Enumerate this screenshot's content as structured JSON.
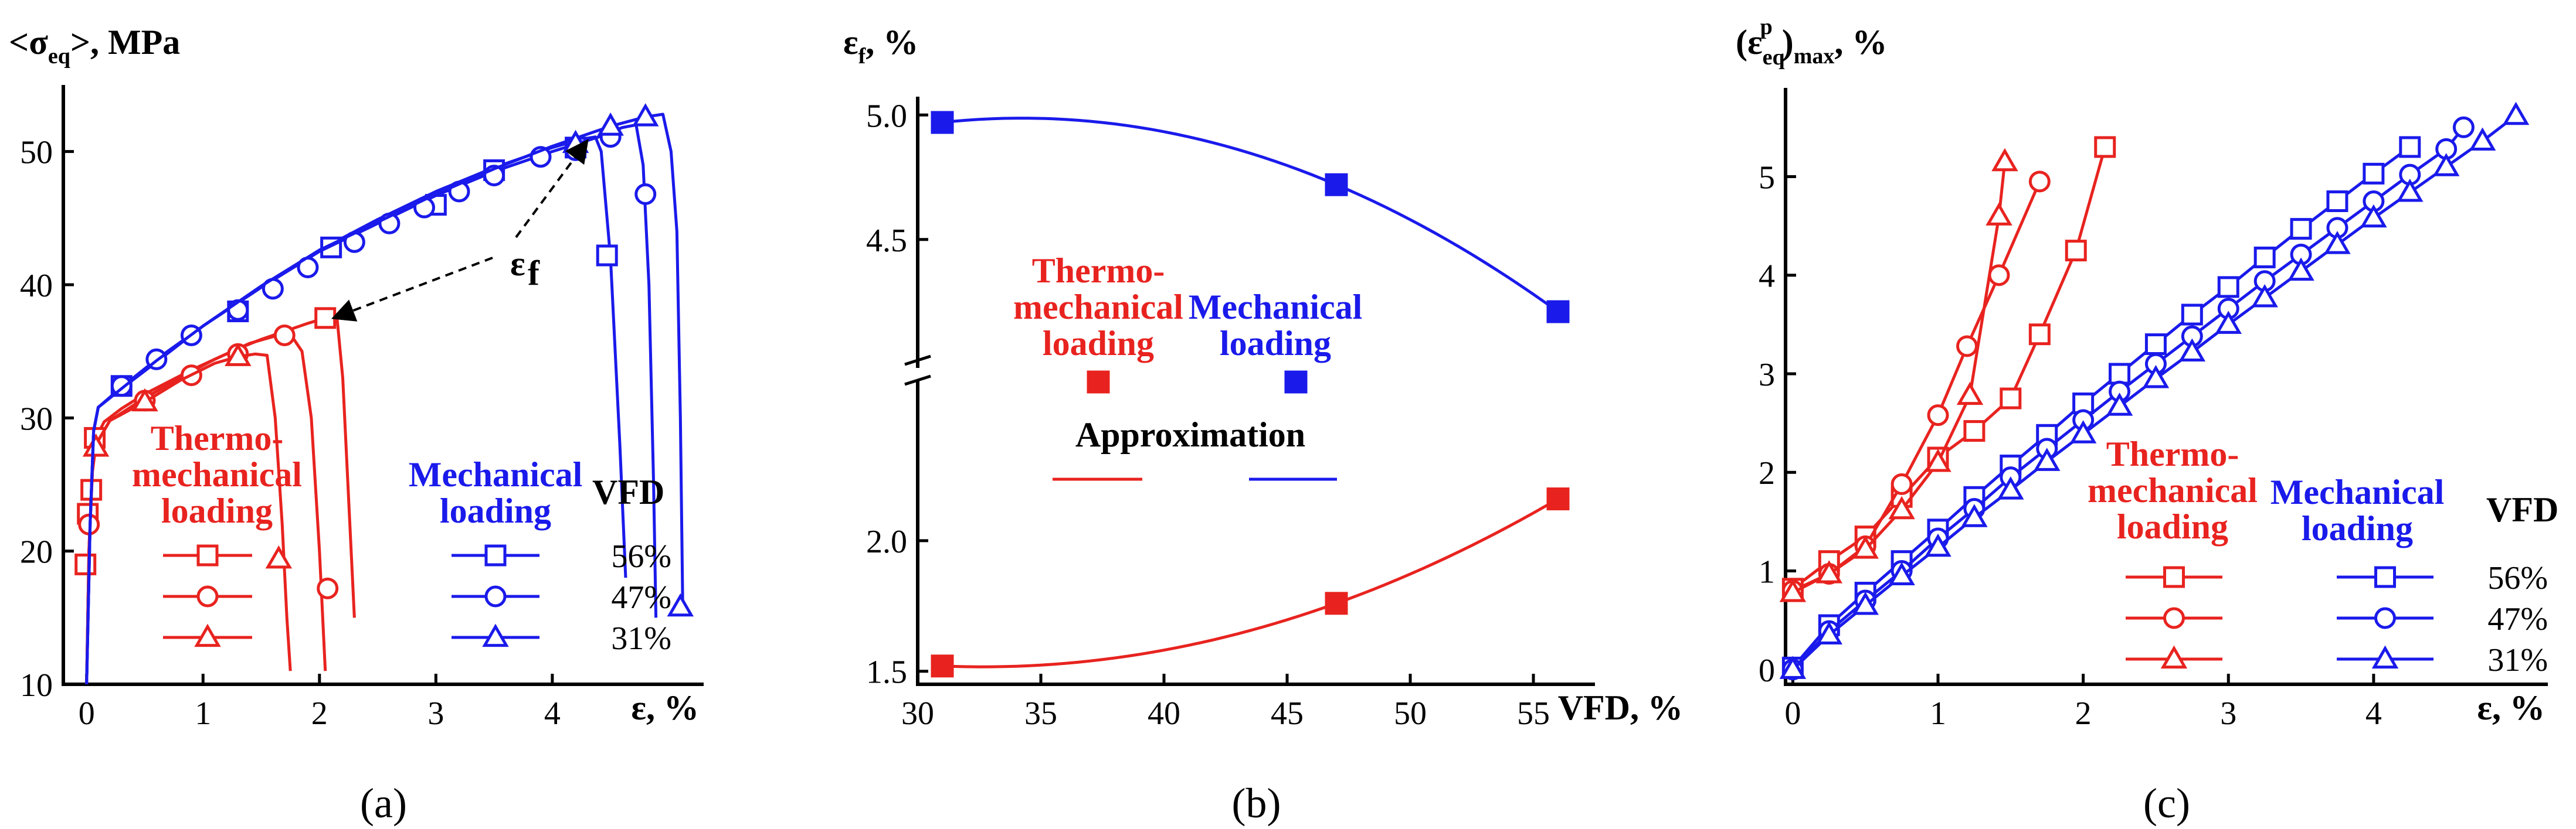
{
  "colors": {
    "thermo": "#e8231f",
    "mech": "#1a1aeb",
    "black": "#000000"
  },
  "chart_data": [
    {
      "id": "a",
      "type": "line",
      "caption": "(a)",
      "ylabel_parts": [
        "<σ",
        "eq",
        ">, MPa"
      ],
      "xlabel": "ε, %",
      "xlim": [
        -0.2,
        5.3
      ],
      "ylim": [
        10,
        55
      ],
      "xticks": [
        0,
        1,
        2,
        3,
        4
      ],
      "yticks": [
        10,
        20,
        30,
        40,
        50
      ],
      "annotation": {
        "symbol": "ε",
        "sub": "f"
      },
      "legend": {
        "thermo_title": [
          "Thermo-",
          "mechanical",
          "loading"
        ],
        "mech_title": [
          "Mechanical",
          "loading"
        ],
        "vfd_title": "VFD",
        "entries": [
          {
            "vfd": "56%",
            "marker": "square"
          },
          {
            "vfd": "47%",
            "marker": "circle"
          },
          {
            "vfd": "31%",
            "marker": "triangle"
          }
        ]
      },
      "series": [
        {
          "name": "Thermo-mechanical 56%",
          "group": "thermo",
          "marker": "square",
          "x": [
            0,
            0.02,
            0.04,
            0.06,
            0.08,
            0.15,
            0.3,
            0.5,
            0.7,
            0.9,
            1.1,
            1.3,
            1.5,
            1.7,
            1.9,
            2.05,
            2.15,
            2.2,
            2.25,
            2.3
          ],
          "y": [
            10,
            20,
            25,
            27.5,
            28.5,
            29.7,
            30.7,
            31.8,
            32.7,
            33.6,
            34.4,
            35.2,
            35.9,
            36.5,
            37.1,
            37.5,
            37.6,
            33,
            24,
            15
          ],
          "mx": [
            -0.01,
            0.01,
            0.04,
            0.07,
            2.05
          ],
          "my": [
            19,
            22.8,
            24.6,
            28.5,
            37.5
          ]
        },
        {
          "name": "Thermo-mechanical 47%",
          "group": "thermo",
          "marker": "circle",
          "x": [
            0,
            0.02,
            0.05,
            0.08,
            0.2,
            0.5,
            0.8,
            1.1,
            1.4,
            1.6,
            1.75,
            1.85,
            1.93,
            2.0,
            2.05
          ],
          "y": [
            10,
            20,
            26,
            28,
            29.8,
            31.5,
            33,
            34.4,
            35.6,
            36.1,
            36.3,
            35,
            30,
            20,
            11
          ],
          "mx": [
            0.02,
            0.5,
            0.9,
            1.3,
            1.7,
            2.07
          ],
          "my": [
            22,
            31.3,
            33.2,
            34.8,
            36.2,
            17.2
          ]
        },
        {
          "name": "Thermo-mechanical 31%",
          "group": "thermo",
          "marker": "triangle",
          "x": [
            0,
            0.02,
            0.05,
            0.08,
            0.2,
            0.5,
            0.8,
            1.1,
            1.3,
            1.45,
            1.55,
            1.62,
            1.68,
            1.72,
            1.75
          ],
          "y": [
            10,
            20,
            26,
            28,
            29.8,
            31.2,
            32.8,
            34.1,
            34.6,
            34.8,
            34.7,
            30,
            22,
            15,
            11
          ],
          "mx": [
            0.08,
            0.5,
            1.3,
            1.65
          ],
          "my": [
            27.8,
            31.2,
            34.6,
            19.4
          ]
        },
        {
          "name": "Mechanical 56%",
          "group": "mech",
          "marker": "square",
          "x": [
            0,
            0.03,
            0.06,
            0.1,
            0.3,
            0.6,
            1.0,
            1.5,
            2.0,
            2.5,
            3.0,
            3.5,
            4.0,
            4.2,
            4.3,
            4.37,
            4.42,
            4.5,
            4.58,
            4.63
          ],
          "y": [
            10,
            22,
            29,
            30.8,
            32.2,
            34.2,
            36.9,
            39.9,
            42.6,
            44.9,
            47.0,
            48.8,
            50.3,
            50.8,
            51.0,
            51.1,
            50,
            42,
            28,
            18
          ],
          "mx": [
            0.3,
            1.3,
            2.1,
            3.0,
            3.5,
            4.2,
            4.47
          ],
          "my": [
            32.4,
            38.0,
            42.8,
            46.0,
            48.6,
            50.3,
            42.2
          ]
        },
        {
          "name": "Mechanical 47%",
          "group": "mech",
          "marker": "circle",
          "x": [
            0,
            0.03,
            0.06,
            0.1,
            0.3,
            0.6,
            1.0,
            1.5,
            2.0,
            2.5,
            3.0,
            3.5,
            4.0,
            4.4,
            4.6,
            4.72,
            4.78,
            4.83,
            4.87,
            4.89
          ],
          "y": [
            10,
            22,
            29,
            30.8,
            32.3,
            34.4,
            36.9,
            39.8,
            42.5,
            44.6,
            46.7,
            48.5,
            50.0,
            51.1,
            51.8,
            52.0,
            49,
            40,
            25,
            15
          ],
          "mx": [
            0.3,
            0.6,
            0.9,
            1.3,
            1.6,
            1.9,
            2.3,
            2.6,
            2.9,
            3.2,
            3.5,
            3.9,
            4.2,
            4.5,
            4.8
          ],
          "my": [
            32.4,
            34.4,
            36.2,
            38.1,
            39.7,
            41.3,
            43.2,
            44.6,
            45.8,
            47.0,
            48.2,
            49.6,
            50.1,
            51.1,
            46.8
          ]
        },
        {
          "name": "Mechanical 31%",
          "group": "mech",
          "marker": "triangle",
          "x": [
            0,
            0.03,
            0.06,
            0.1,
            0.3,
            0.6,
            1.0,
            1.5,
            2.0,
            2.5,
            3.0,
            3.5,
            4.0,
            4.5,
            4.8,
            4.95,
            5.02,
            5.07,
            5.1,
            5.12
          ],
          "y": [
            10,
            22,
            29,
            30.8,
            32.2,
            34.3,
            36.9,
            39.9,
            42.6,
            44.7,
            46.8,
            48.7,
            50.4,
            51.9,
            52.6,
            52.8,
            50,
            44,
            30,
            16
          ],
          "mx": [
            4.2,
            4.5,
            4.8,
            5.1
          ],
          "my": [
            50.6,
            51.9,
            52.6,
            15.8
          ]
        }
      ]
    },
    {
      "id": "b",
      "type": "scatter",
      "caption": "(b)",
      "ylabel_parts": [
        "ε",
        "f",
        ", %"
      ],
      "xlabel": "VFD, %",
      "xlim": [
        30,
        57.5
      ],
      "xticks": [
        30,
        35,
        40,
        45,
        50,
        55
      ],
      "yticks_upper": [
        4.5,
        5.0
      ],
      "yticks_lower": [
        1.5,
        2.0
      ],
      "ylim_upper": [
        4.05,
        5.05
      ],
      "ylim_lower": [
        1.45,
        2.5
      ],
      "legend": {
        "thermo_title": [
          "Thermo-",
          "mechanical",
          "loading"
        ],
        "mech_title": [
          "Mechanical",
          "loading"
        ],
        "approx": "Approximation"
      },
      "series": [
        {
          "name": "Mechanical loading",
          "group": "mech",
          "x": [
            31,
            47,
            56
          ],
          "y": [
            4.97,
            4.72,
            4.21
          ]
        },
        {
          "name": "Thermo-mechanical loading",
          "group": "thermo",
          "x": [
            31,
            47,
            56
          ],
          "y": [
            1.52,
            1.76,
            2.16
          ]
        }
      ]
    },
    {
      "id": "c",
      "type": "line",
      "caption": "(c)",
      "ylabel_parts": [
        "(ε",
        "eq",
        "p",
        ")",
        "max",
        ", %"
      ],
      "xlabel": "ε, %",
      "xlim": [
        -0.05,
        5.2
      ],
      "ylim": [
        -0.15,
        5.9
      ],
      "xticks": [
        0,
        1,
        2,
        3,
        4
      ],
      "yticks": [
        0,
        1,
        2,
        3,
        4,
        5
      ],
      "legend": {
        "thermo_title": [
          "Thermo-",
          "mechanical",
          "loading"
        ],
        "mech_title": [
          "Mechanical",
          "loading"
        ],
        "vfd_title": "VFD",
        "entries": [
          {
            "vfd": "56%",
            "marker": "square"
          },
          {
            "vfd": "47%",
            "marker": "circle"
          },
          {
            "vfd": "31%",
            "marker": "triangle"
          }
        ]
      },
      "series": [
        {
          "name": "Thermo-mechanical 56%",
          "group": "thermo",
          "marker": "square",
          "x": [
            0,
            0.25,
            0.5,
            0.75,
            1.0,
            1.25,
            1.5,
            1.7,
            1.95,
            2.15
          ],
          "y": [
            0.82,
            1.1,
            1.35,
            1.75,
            2.15,
            2.42,
            2.75,
            3.4,
            4.25,
            5.3
          ]
        },
        {
          "name": "Thermo-mechanical 47%",
          "group": "thermo",
          "marker": "circle",
          "x": [
            0,
            0.25,
            0.5,
            0.75,
            1.0,
            1.2,
            1.42,
            1.7
          ],
          "y": [
            0.8,
            0.97,
            1.25,
            1.88,
            2.58,
            3.28,
            4.0,
            4.95
          ]
        },
        {
          "name": "Thermo-mechanical 31%",
          "group": "thermo",
          "marker": "triangle",
          "x": [
            0,
            0.25,
            0.5,
            0.75,
            1.0,
            1.22,
            1.42,
            1.46
          ],
          "y": [
            0.78,
            0.97,
            1.22,
            1.62,
            2.1,
            2.78,
            4.6,
            5.15
          ]
        },
        {
          "name": "Mechanical 56%",
          "group": "mech",
          "marker": "square",
          "x": [
            0,
            0.25,
            0.5,
            0.75,
            1.0,
            1.25,
            1.5,
            1.75,
            2.0,
            2.25,
            2.5,
            2.75,
            3.0,
            3.25,
            3.5,
            3.75,
            4.0,
            4.25
          ],
          "y": [
            0.02,
            0.45,
            0.78,
            1.1,
            1.42,
            1.75,
            2.07,
            2.38,
            2.7,
            3.0,
            3.3,
            3.6,
            3.88,
            4.18,
            4.47,
            4.75,
            5.03,
            5.3
          ]
        },
        {
          "name": "Mechanical 47%",
          "group": "mech",
          "marker": "circle",
          "x": [
            0,
            0.25,
            0.5,
            0.75,
            1.0,
            1.25,
            1.5,
            1.75,
            2.0,
            2.25,
            2.5,
            2.75,
            3.0,
            3.25,
            3.5,
            3.75,
            4.0,
            4.25,
            4.5,
            4.62
          ],
          "y": [
            0.0,
            0.39,
            0.7,
            1.0,
            1.33,
            1.63,
            1.95,
            2.24,
            2.53,
            2.82,
            3.1,
            3.38,
            3.66,
            3.94,
            4.21,
            4.48,
            4.75,
            5.02,
            5.28,
            5.5
          ]
        },
        {
          "name": "Mechanical 31%",
          "group": "mech",
          "marker": "triangle",
          "x": [
            0,
            0.25,
            0.5,
            0.75,
            1.0,
            1.25,
            1.5,
            1.75,
            2.0,
            2.25,
            2.5,
            2.75,
            3.0,
            3.25,
            3.5,
            3.75,
            4.0,
            4.25,
            4.5,
            4.75,
            4.98
          ],
          "y": [
            0.0,
            0.35,
            0.65,
            0.95,
            1.24,
            1.54,
            1.82,
            2.11,
            2.39,
            2.67,
            2.95,
            3.22,
            3.5,
            3.77,
            4.04,
            4.31,
            4.58,
            4.84,
            5.1,
            5.36,
            5.62
          ]
        }
      ]
    }
  ]
}
